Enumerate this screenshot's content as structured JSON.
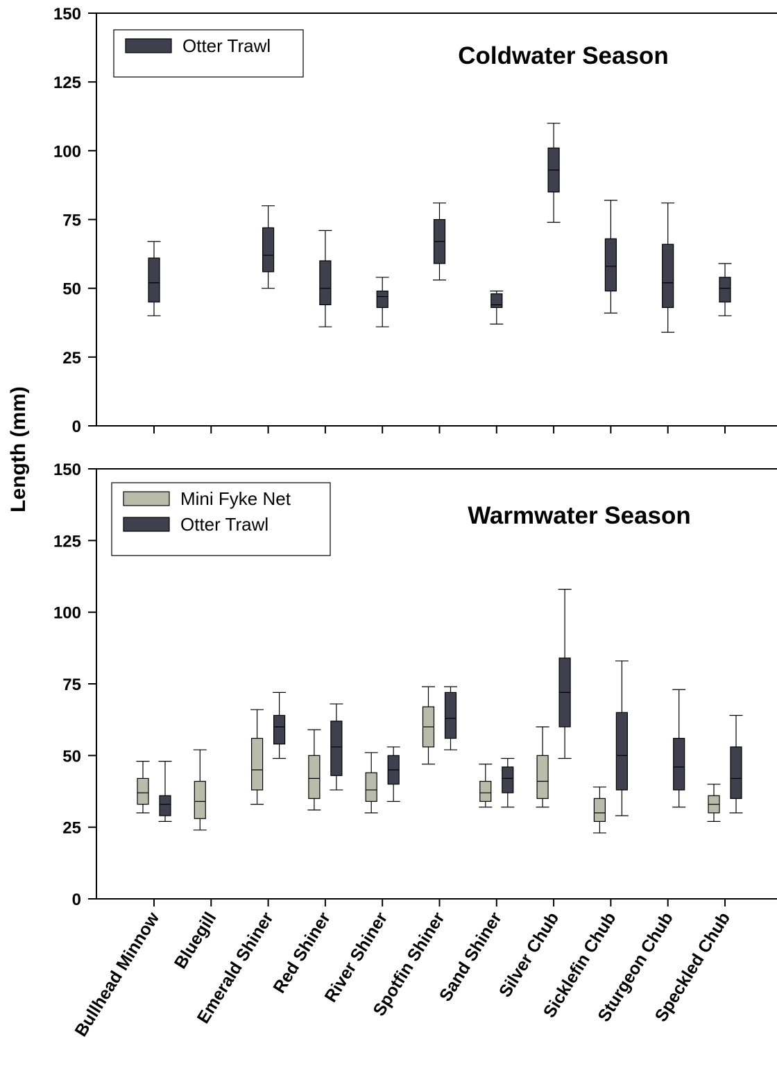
{
  "chart_data": {
    "type": "boxplot",
    "ylabel": "Length (mm)",
    "categories": [
      "Bullhead Minnow",
      "Bluegill",
      "Emerald Shiner",
      "Red Shiner",
      "River Shiner",
      "Spotfin Shiner",
      "Sand Shiner",
      "Silver Chub",
      "Sicklefin Chub",
      "Sturgeon Chub",
      "Speckled Chub"
    ],
    "panels": [
      {
        "title": "Coldwater Season",
        "ylim": [
          0,
          150
        ],
        "yticks": [
          "0",
          "25",
          "50",
          "75",
          "100",
          "125",
          "150"
        ],
        "legend": [
          "Otter Trawl"
        ],
        "series": [
          {
            "name": "Otter Trawl",
            "color": "#3f3f4d",
            "boxes": [
              {
                "category": "Bullhead Minnow",
                "min": 40,
                "q1": 45,
                "median": 52,
                "q3": 61,
                "max": 67
              },
              {
                "category": "Emerald Shiner",
                "min": 50,
                "q1": 56,
                "median": 62,
                "q3": 72,
                "max": 80
              },
              {
                "category": "Red Shiner",
                "min": 36,
                "q1": 44,
                "median": 50,
                "q3": 60,
                "max": 71
              },
              {
                "category": "River Shiner",
                "min": 36,
                "q1": 43,
                "median": 47,
                "q3": 49,
                "max": 54
              },
              {
                "category": "Spotfin Shiner",
                "min": 53,
                "q1": 59,
                "median": 67,
                "q3": 75,
                "max": 81
              },
              {
                "category": "Sand Shiner",
                "min": 37,
                "q1": 43,
                "median": 44,
                "q3": 48,
                "max": 49
              },
              {
                "category": "Silver Chub",
                "min": 74,
                "q1": 85,
                "median": 93,
                "q3": 101,
                "max": 110
              },
              {
                "category": "Sicklefin Chub",
                "min": 41,
                "q1": 49,
                "median": 58,
                "q3": 68,
                "max": 82
              },
              {
                "category": "Sturgeon Chub",
                "min": 34,
                "q1": 43,
                "median": 52,
                "q3": 66,
                "max": 81
              },
              {
                "category": "Speckled Chub",
                "min": 40,
                "q1": 45,
                "median": 50,
                "q3": 54,
                "max": 59
              }
            ]
          }
        ]
      },
      {
        "title": "Warmwater Season",
        "ylim": [
          0,
          150
        ],
        "yticks": [
          "0",
          "25",
          "50",
          "75",
          "100",
          "125",
          "150"
        ],
        "legend": [
          "Mini Fyke Net",
          "Otter Trawl"
        ],
        "series": [
          {
            "name": "Mini Fyke Net",
            "color": "#b9bcab",
            "boxes": [
              {
                "category": "Bullhead Minnow",
                "min": 30,
                "q1": 33,
                "median": 37,
                "q3": 42,
                "max": 48
              },
              {
                "category": "Bluegill",
                "min": 24,
                "q1": 28,
                "median": 34,
                "q3": 41,
                "max": 52
              },
              {
                "category": "Emerald Shiner",
                "min": 33,
                "q1": 38,
                "median": 45,
                "q3": 56,
                "max": 66
              },
              {
                "category": "Red Shiner",
                "min": 31,
                "q1": 35,
                "median": 42,
                "q3": 50,
                "max": 59
              },
              {
                "category": "River Shiner",
                "min": 30,
                "q1": 34,
                "median": 38,
                "q3": 44,
                "max": 51
              },
              {
                "category": "Spotfin Shiner",
                "min": 47,
                "q1": 53,
                "median": 60,
                "q3": 67,
                "max": 74
              },
              {
                "category": "Sand Shiner",
                "min": 32,
                "q1": 34,
                "median": 37,
                "q3": 41,
                "max": 47
              },
              {
                "category": "Silver Chub",
                "min": 32,
                "q1": 35,
                "median": 41,
                "q3": 50,
                "max": 60
              },
              {
                "category": "Sicklefin Chub",
                "min": 23,
                "q1": 27,
                "median": 30,
                "q3": 35,
                "max": 39
              },
              {
                "category": "Speckled Chub",
                "min": 27,
                "q1": 30,
                "median": 33,
                "q3": 36,
                "max": 40
              }
            ]
          },
          {
            "name": "Otter Trawl",
            "color": "#3f3f4d",
            "boxes": [
              {
                "category": "Bullhead Minnow",
                "min": 27,
                "q1": 29,
                "median": 33,
                "q3": 36,
                "max": 48
              },
              {
                "category": "Emerald Shiner",
                "min": 49,
                "q1": 54,
                "median": 60,
                "q3": 64,
                "max": 72
              },
              {
                "category": "Red Shiner",
                "min": 38,
                "q1": 43,
                "median": 53,
                "q3": 62,
                "max": 68
              },
              {
                "category": "River Shiner",
                "min": 34,
                "q1": 40,
                "median": 45,
                "q3": 50,
                "max": 53
              },
              {
                "category": "Spotfin Shiner",
                "min": 52,
                "q1": 56,
                "median": 63,
                "q3": 72,
                "max": 74
              },
              {
                "category": "Sand Shiner",
                "min": 32,
                "q1": 37,
                "median": 42,
                "q3": 46,
                "max": 49
              },
              {
                "category": "Silver Chub",
                "min": 49,
                "q1": 60,
                "median": 72,
                "q3": 84,
                "max": 108
              },
              {
                "category": "Sicklefin Chub",
                "min": 29,
                "q1": 38,
                "median": 50,
                "q3": 65,
                "max": 83
              },
              {
                "category": "Sturgeon Chub",
                "min": 32,
                "q1": 38,
                "median": 46,
                "q3": 56,
                "max": 73
              },
              {
                "category": "Speckled Chub",
                "min": 30,
                "q1": 35,
                "median": 42,
                "q3": 53,
                "max": 64
              }
            ]
          }
        ]
      }
    ]
  }
}
